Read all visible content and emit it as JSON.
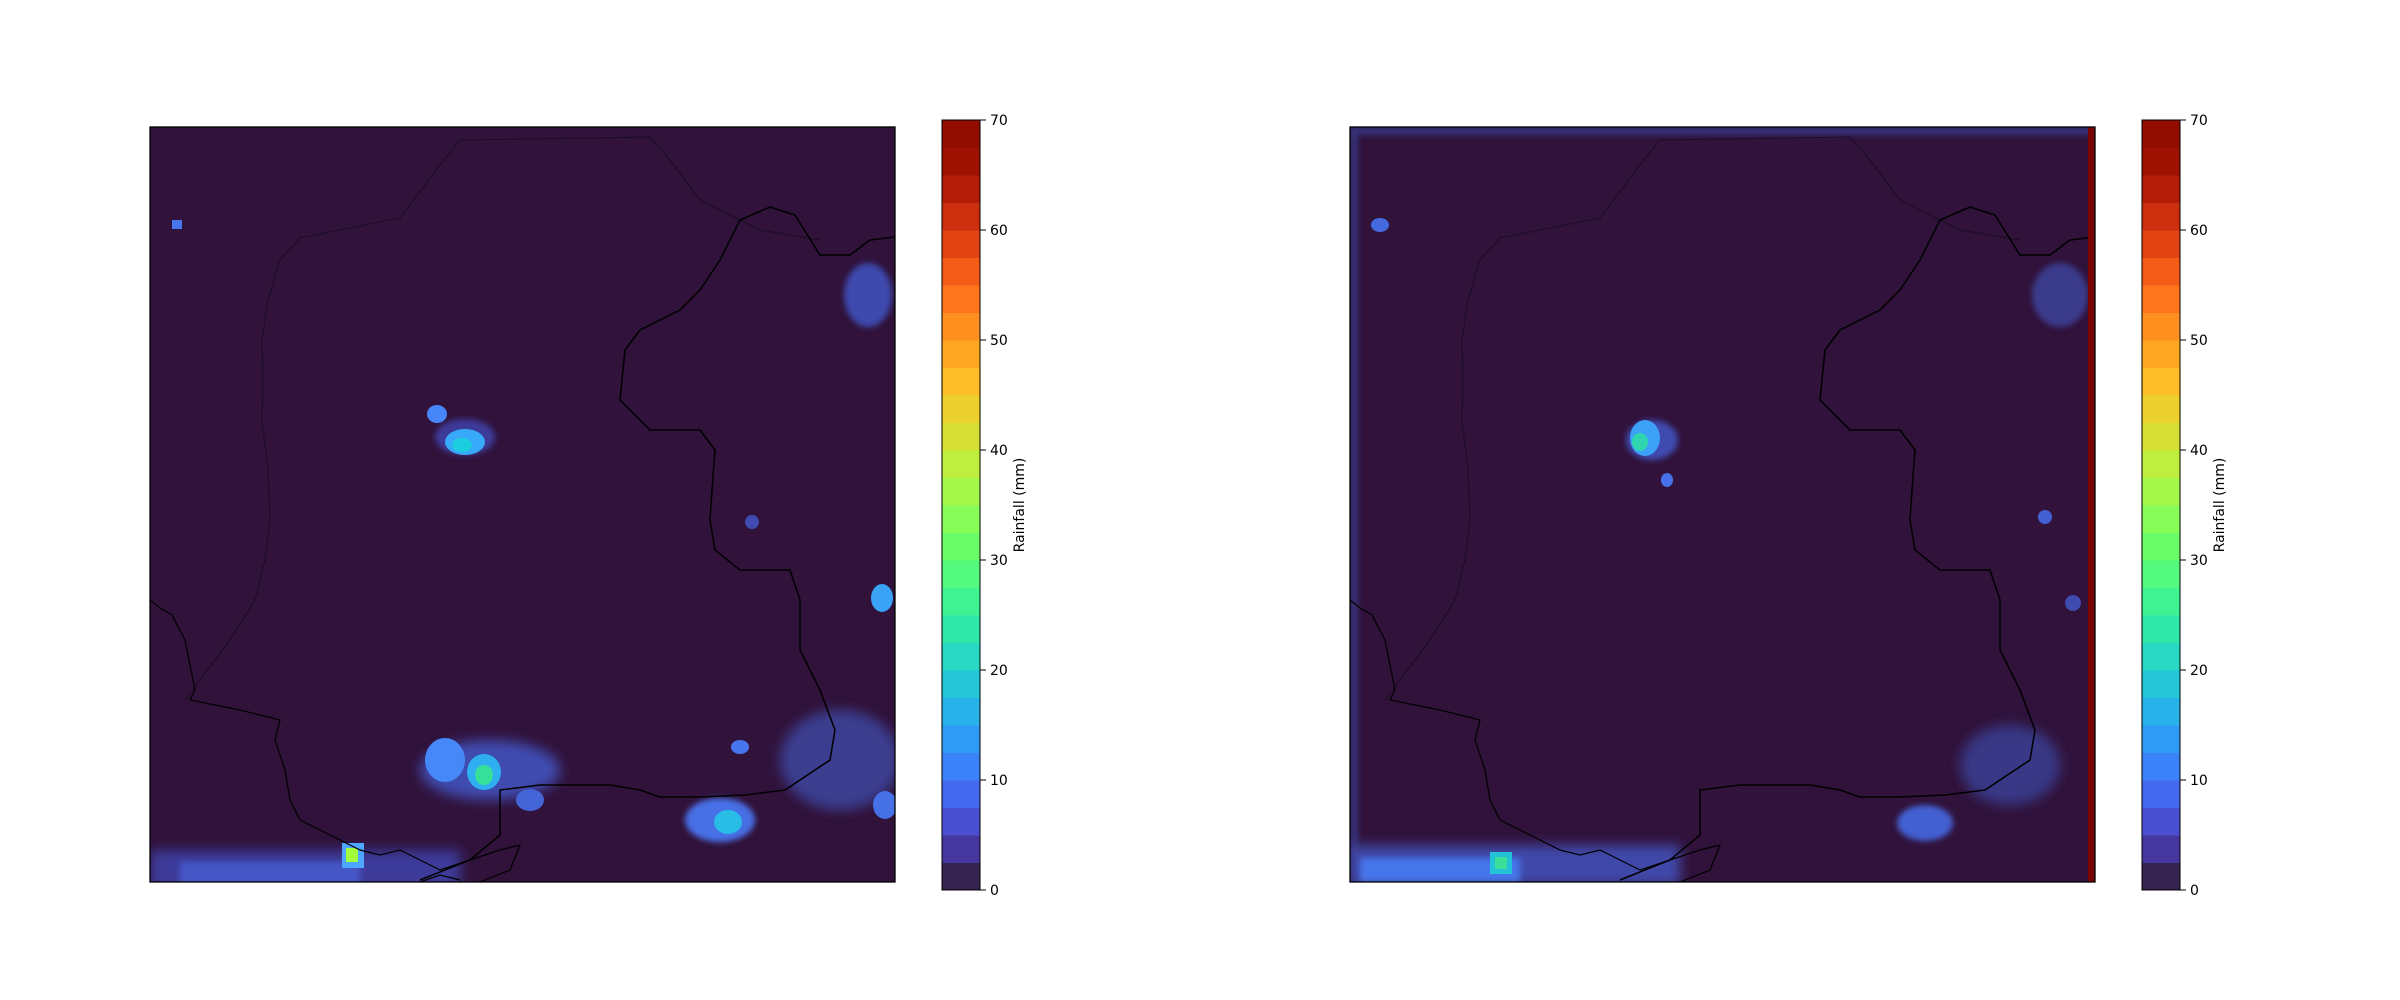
{
  "figure": {
    "background": "#ffffff"
  },
  "colormap": {
    "name": "turbo",
    "min": 0,
    "max": 70,
    "levels": [
      0,
      2.5,
      5,
      7.5,
      10,
      12.5,
      15,
      17.5,
      20,
      22.5,
      25,
      27.5,
      30,
      32.5,
      35,
      37.5,
      40,
      42.5,
      45,
      47.5,
      50,
      52.5,
      55,
      57.5,
      60,
      62.5,
      65,
      67.5,
      70
    ]
  },
  "chart_data": [
    {
      "type": "heatmap",
      "title": "",
      "xlabel": "",
      "ylabel": "",
      "background_value": 0,
      "base_color": "#30123b",
      "colorbar": {
        "label": "Rainfall (mm)",
        "ticks": [
          "0",
          "10",
          "20",
          "30",
          "40",
          "50",
          "60",
          "70"
        ],
        "range": [
          0,
          70
        ]
      },
      "map_features": [
        "coastlines",
        "country-borders",
        "region-border"
      ],
      "grid": false
    },
    {
      "type": "heatmap",
      "title": "",
      "xlabel": "",
      "ylabel": "",
      "background_value": 0,
      "base_color": "#30123b",
      "colorbar": {
        "label": "Rainfall (mm)",
        "ticks": [
          "0",
          "10",
          "20",
          "30",
          "40",
          "50",
          "60",
          "70"
        ],
        "range": [
          0,
          70
        ]
      },
      "map_features": [
        "coastlines",
        "country-borders",
        "region-border"
      ],
      "grid": false
    }
  ]
}
